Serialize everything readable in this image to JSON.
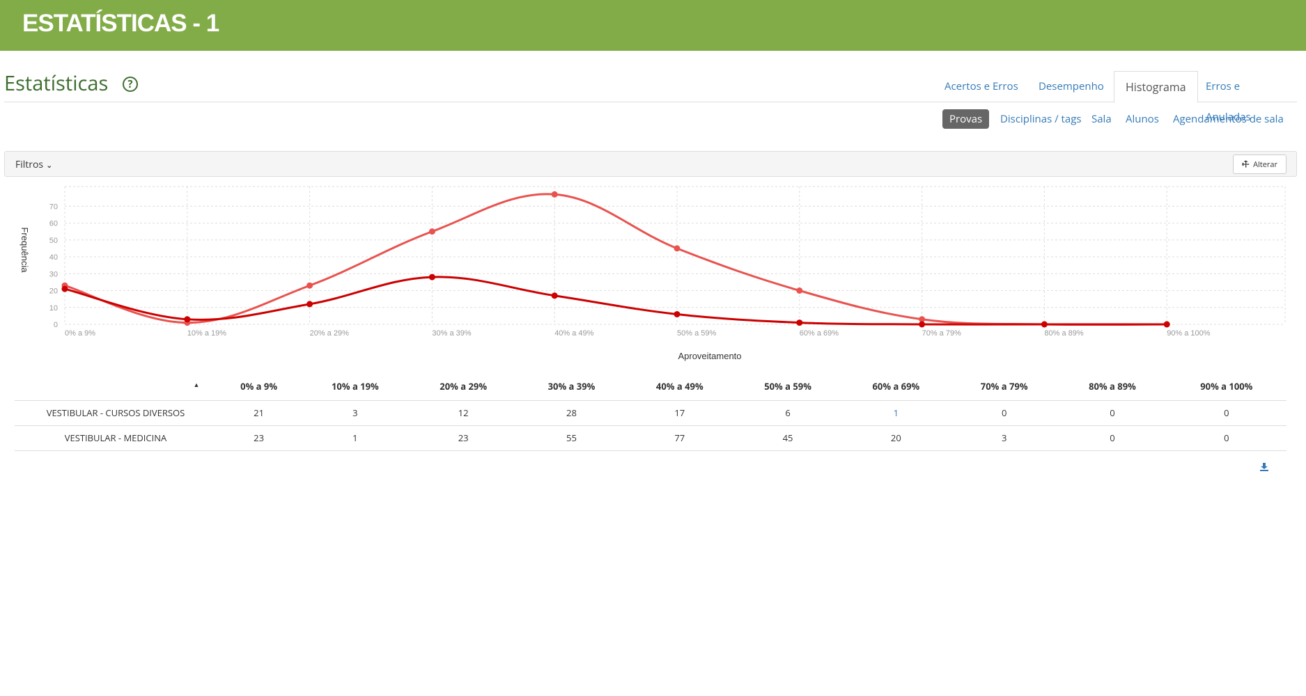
{
  "banner": {
    "title": "ESTATÍSTICAS - 1",
    "color": "#82ac47"
  },
  "page": {
    "title": "Estatísticas",
    "help_icon": "question-circle-icon",
    "help_glyph": "?"
  },
  "tabs": [
    {
      "label": "Acertos e Erros",
      "active": false
    },
    {
      "label": "Desempenho",
      "active": false
    },
    {
      "label": "Histograma",
      "active": true
    },
    {
      "label": "Erros e Anuladas",
      "active": false
    }
  ],
  "subtabs": [
    {
      "label": "Provas",
      "active": true
    },
    {
      "label": "Disciplinas / tags",
      "active": false
    },
    {
      "label": "Sala",
      "active": false
    },
    {
      "label": "Alunos",
      "active": false
    },
    {
      "label": "Agendamentos de sala",
      "active": false
    }
  ],
  "filters": {
    "label": "Filtros",
    "chevron_icon": "chevron-down-icon",
    "alter_label": "Alterar",
    "alter_icon": "wrench-icon"
  },
  "chart_data": {
    "type": "line",
    "categories": [
      "0% a 9%",
      "10% a 19%",
      "20% a 29%",
      "30% a 39%",
      "40% a 49%",
      "50% a 59%",
      "60% a 69%",
      "70% a 79%",
      "80% a 89%",
      "90% a 100%"
    ],
    "series": [
      {
        "name": "VESTIBULAR - CURSOS DIVERSOS",
        "values": [
          21,
          3,
          12,
          28,
          17,
          6,
          1,
          0,
          0,
          0
        ],
        "color": "#cc0000"
      },
      {
        "name": "VESTIBULAR - MEDICINA",
        "values": [
          23,
          1,
          23,
          55,
          77,
          45,
          20,
          3,
          0,
          0
        ],
        "color": "#e8534f"
      }
    ],
    "yticks": [
      0,
      10,
      20,
      30,
      40,
      50,
      60,
      70
    ],
    "ylim": [
      0,
      80
    ],
    "xlabel": "Aproveitamento",
    "ylabel": "Frequência",
    "grid": true,
    "smooth": true
  },
  "table": {
    "sort_icon": "sort-up-icon",
    "sort_glyph": "▲",
    "headers": [
      "0% a 9%",
      "10% a 19%",
      "20% a 29%",
      "30% a 39%",
      "40% a 49%",
      "50% a 59%",
      "60% a 69%",
      "70% a 79%",
      "80% a 89%",
      "90% a 100%"
    ],
    "rows": [
      {
        "label": "VESTIBULAR - CURSOS DIVERSOS",
        "values": [
          "21",
          "3",
          "12",
          "28",
          "17",
          "6",
          "1",
          "0",
          "0",
          "0"
        ]
      },
      {
        "label": "VESTIBULAR - MEDICINA",
        "values": [
          "23",
          "1",
          "23",
          "55",
          "77",
          "45",
          "20",
          "3",
          "0",
          "0"
        ]
      }
    ],
    "download_icon": "download-icon"
  }
}
